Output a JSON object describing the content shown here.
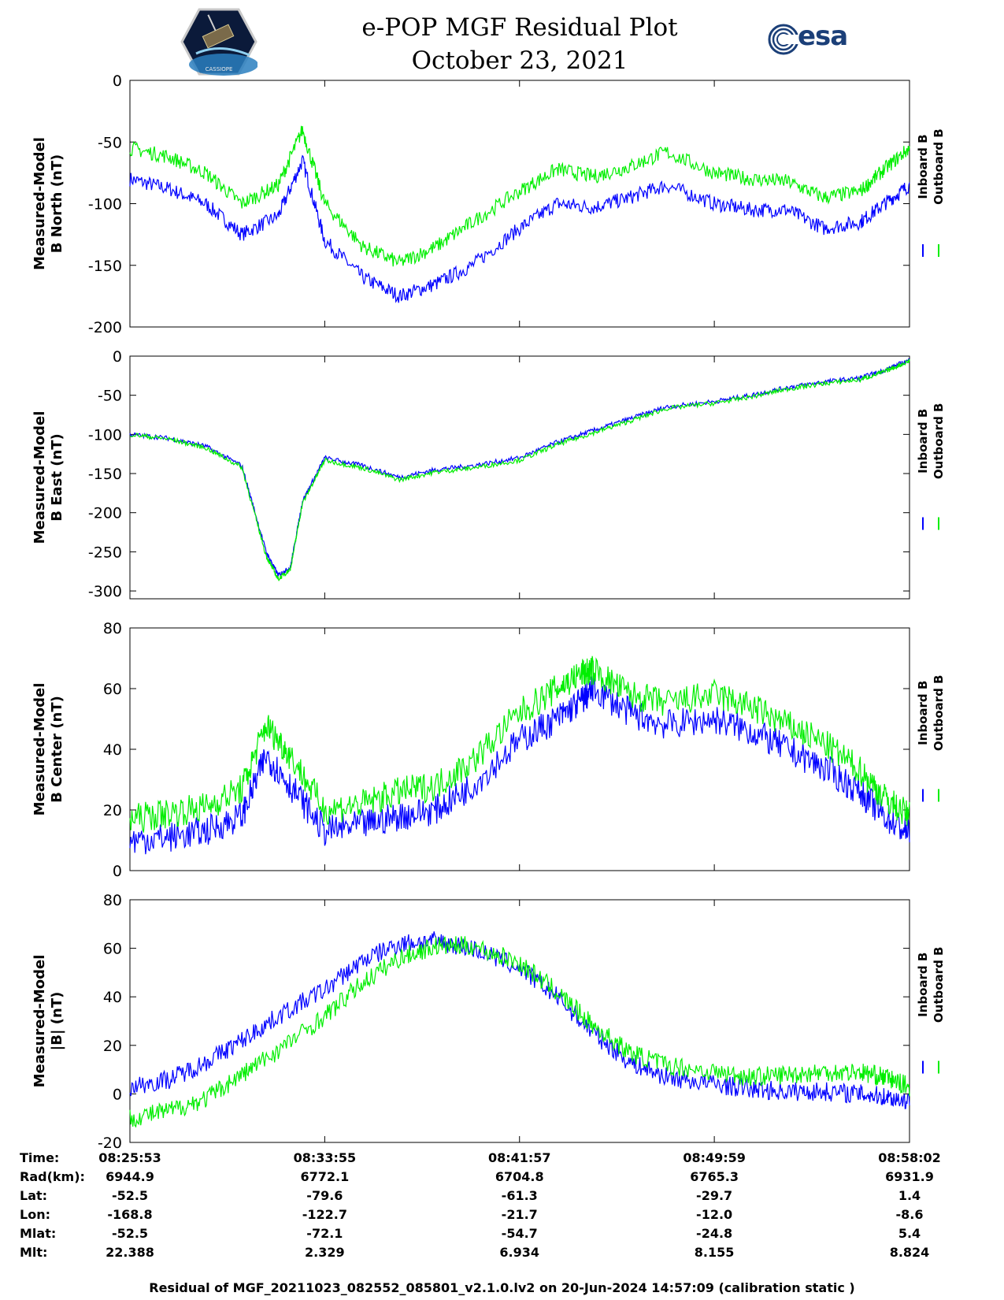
{
  "header": {
    "title": "e-POP MGF Residual Plot",
    "date": "October 23, 2021",
    "agency_logo_text": "esa",
    "mission_logo_text": "CASSIOPE"
  },
  "colors": {
    "inboard": "#0000ff",
    "outboard": "#00ee00"
  },
  "chart_data": [
    {
      "type": "line",
      "ylabel": [
        "Measured-Model",
        "B North (nT)"
      ],
      "ylim": [
        -200,
        0
      ],
      "yticks": [
        0,
        -50,
        -100,
        -150,
        -200
      ],
      "x": [
        "08:25:53",
        "08:27:30",
        "08:29:00",
        "08:30:30",
        "08:32:00",
        "08:33:00",
        "08:33:55",
        "08:35:30",
        "08:37:00",
        "08:38:30",
        "08:40:00",
        "08:41:57",
        "08:43:30",
        "08:45:00",
        "08:46:30",
        "08:48:00",
        "08:49:59",
        "08:51:30",
        "08:53:00",
        "08:54:30",
        "08:56:00",
        "08:57:00",
        "08:58:02"
      ],
      "series": [
        {
          "name": "Inboard B",
          "values": [
            -80,
            -88,
            -100,
            -125,
            -110,
            -65,
            -130,
            -160,
            -175,
            -165,
            -150,
            -120,
            -100,
            -103,
            -95,
            -85,
            -100,
            -105,
            -105,
            -120,
            -115,
            -100,
            -85
          ]
        },
        {
          "name": "Outboard B",
          "values": [
            -55,
            -62,
            -75,
            -100,
            -85,
            -40,
            -100,
            -135,
            -148,
            -135,
            -115,
            -90,
            -72,
            -78,
            -70,
            -58,
            -75,
            -80,
            -82,
            -95,
            -90,
            -72,
            -55
          ]
        }
      ],
      "legend": "right"
    },
    {
      "type": "line",
      "ylabel": [
        "Measured-Model",
        "B East (nT)"
      ],
      "ylim": [
        -310,
        0
      ],
      "yticks": [
        0,
        -50,
        -100,
        -150,
        -200,
        -250,
        -300
      ],
      "x": [
        "08:25:53",
        "08:27:30",
        "08:29:00",
        "08:30:30",
        "08:31:30",
        "08:32:00",
        "08:32:30",
        "08:33:00",
        "08:33:55",
        "08:35:30",
        "08:37:00",
        "08:38:30",
        "08:40:00",
        "08:41:57",
        "08:43:30",
        "08:45:00",
        "08:46:30",
        "08:48:00",
        "08:49:59",
        "08:51:30",
        "08:53:00",
        "08:54:30",
        "08:56:00",
        "08:57:00",
        "08:58:02"
      ],
      "series": [
        {
          "name": "Inboard B",
          "values": [
            -100,
            -105,
            -115,
            -140,
            -250,
            -280,
            -270,
            -185,
            -130,
            -140,
            -155,
            -145,
            -140,
            -130,
            -110,
            -95,
            -80,
            -65,
            -58,
            -50,
            -40,
            -33,
            -28,
            -18,
            -5
          ]
        },
        {
          "name": "Outboard B",
          "values": [
            -100,
            -106,
            -117,
            -142,
            -255,
            -285,
            -272,
            -188,
            -133,
            -143,
            -158,
            -148,
            -143,
            -133,
            -113,
            -98,
            -83,
            -67,
            -60,
            -52,
            -42,
            -35,
            -30,
            -20,
            -6
          ]
        }
      ],
      "legend": "right"
    },
    {
      "type": "line",
      "ylabel": [
        "Measured-Model",
        "B Center (nT)"
      ],
      "ylim": [
        0,
        80
      ],
      "yticks": [
        80,
        60,
        40,
        20,
        0
      ],
      "x": [
        "08:25:53",
        "08:27:30",
        "08:29:00",
        "08:30:30",
        "08:31:30",
        "08:32:30",
        "08:33:55",
        "08:35:30",
        "08:37:00",
        "08:38:30",
        "08:40:00",
        "08:41:57",
        "08:43:30",
        "08:44:30",
        "08:45:00",
        "08:46:30",
        "08:48:00",
        "08:49:59",
        "08:51:30",
        "08:53:00",
        "08:54:30",
        "08:56:00",
        "08:57:00",
        "08:58:02"
      ],
      "series": [
        {
          "name": "Inboard B",
          "values": [
            10,
            11,
            13,
            18,
            38,
            28,
            13,
            15,
            18,
            20,
            28,
            43,
            50,
            56,
            60,
            52,
            48,
            50,
            46,
            40,
            34,
            26,
            18,
            12
          ]
        },
        {
          "name": "Outboard B",
          "values": [
            17,
            19,
            21,
            27,
            48,
            38,
            20,
            22,
            26,
            28,
            36,
            52,
            60,
            65,
            66,
            58,
            55,
            58,
            54,
            48,
            42,
            33,
            24,
            18
          ]
        }
      ],
      "legend": "right"
    },
    {
      "type": "line",
      "ylabel": [
        "Measured-Model",
        "|B| (nT)"
      ],
      "ylim": [
        -20,
        80
      ],
      "yticks": [
        80,
        60,
        40,
        20,
        0,
        -20
      ],
      "x": [
        "08:25:53",
        "08:27:30",
        "08:29:00",
        "08:30:30",
        "08:32:00",
        "08:33:55",
        "08:35:30",
        "08:37:00",
        "08:38:30",
        "08:40:00",
        "08:41:57",
        "08:43:30",
        "08:45:00",
        "08:46:30",
        "08:48:00",
        "08:49:59",
        "08:51:30",
        "08:53:00",
        "08:54:30",
        "08:56:00",
        "08:57:00",
        "08:58:02"
      ],
      "series": [
        {
          "name": "Inboard B",
          "values": [
            3,
            6,
            13,
            22,
            32,
            43,
            55,
            62,
            63,
            60,
            52,
            40,
            25,
            13,
            7,
            4,
            2,
            1,
            1,
            0,
            -1,
            -3
          ]
        },
        {
          "name": "Outboard B",
          "values": [
            -10,
            -7,
            -2,
            8,
            18,
            32,
            46,
            56,
            61,
            61,
            54,
            42,
            28,
            17,
            12,
            9,
            7,
            8,
            9,
            9,
            7,
            3
          ]
        }
      ],
      "legend": "right"
    }
  ],
  "ephemeris": {
    "rows": [
      {
        "label": "Time:",
        "values": [
          "08:25:53",
          "08:33:55",
          "08:41:57",
          "08:49:59",
          "08:58:02"
        ]
      },
      {
        "label": "Rad(km):",
        "values": [
          "6944.9",
          "6772.1",
          "6704.8",
          "6765.3",
          "6931.9"
        ]
      },
      {
        "label": "Lat:",
        "values": [
          "-52.5",
          "-79.6",
          "-61.3",
          "-29.7",
          "1.4"
        ]
      },
      {
        "label": "Lon:",
        "values": [
          "-168.8",
          "-122.7",
          "-21.7",
          "-12.0",
          "-8.6"
        ]
      },
      {
        "label": "Mlat:",
        "values": [
          "-52.5",
          "-72.1",
          "-54.7",
          "-24.8",
          "5.4"
        ]
      },
      {
        "label": "Mlt:",
        "values": [
          "22.388",
          "2.329",
          "6.934",
          "8.155",
          "8.824"
        ]
      }
    ]
  },
  "footnote": "Residual of MGF_20211023_082552_085801_v2.1.0.lv2 on 20-Jun-2024 14:57:09 (calibration static )"
}
